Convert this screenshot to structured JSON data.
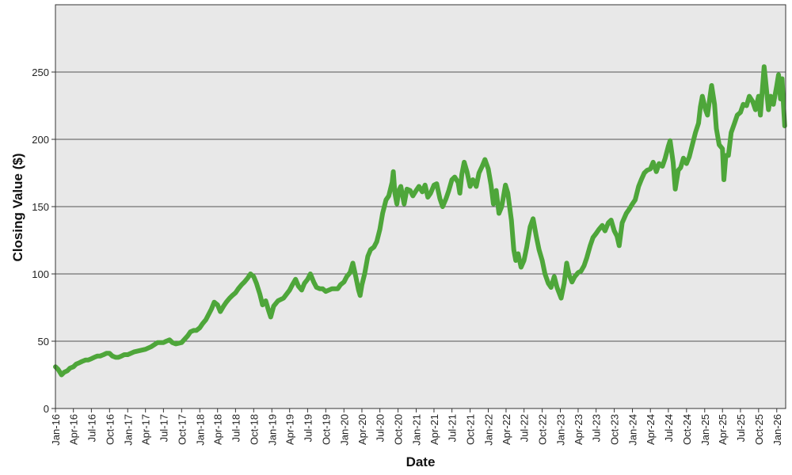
{
  "chart_data": {
    "type": "line",
    "title": "",
    "xlabel": "Date",
    "ylabel": "Closing Value ($)",
    "ylim": [
      0,
      300
    ],
    "yticks": [
      0,
      50,
      100,
      150,
      200,
      250
    ],
    "xlim": [
      "2016-01-01",
      "2026-02-15"
    ],
    "x_ticks": [
      {
        "date": "2016-01-01",
        "label": "Jan-16"
      },
      {
        "date": "2016-04-01",
        "label": "Apr-16"
      },
      {
        "date": "2016-07-01",
        "label": "Jul-16"
      },
      {
        "date": "2016-10-01",
        "label": "Oct-16"
      },
      {
        "date": "2017-01-01",
        "label": "Jan-17"
      },
      {
        "date": "2017-04-01",
        "label": "Apr-17"
      },
      {
        "date": "2017-07-01",
        "label": "Jul-17"
      },
      {
        "date": "2017-10-01",
        "label": "Oct-17"
      },
      {
        "date": "2018-01-01",
        "label": "Jan-18"
      },
      {
        "date": "2018-04-01",
        "label": "Apr-18"
      },
      {
        "date": "2018-07-01",
        "label": "Jul-18"
      },
      {
        "date": "2018-10-01",
        "label": "Oct-18"
      },
      {
        "date": "2019-01-01",
        "label": "Jan-19"
      },
      {
        "date": "2019-04-01",
        "label": "Apr-19"
      },
      {
        "date": "2019-07-01",
        "label": "Jul-19"
      },
      {
        "date": "2019-10-01",
        "label": "Oct-19"
      },
      {
        "date": "2020-01-01",
        "label": "Jan-20"
      },
      {
        "date": "2020-04-01",
        "label": "Apr-20"
      },
      {
        "date": "2020-07-01",
        "label": "Jul-20"
      },
      {
        "date": "2020-10-01",
        "label": "Oct-20"
      },
      {
        "date": "2021-01-01",
        "label": "Jan-21"
      },
      {
        "date": "2021-04-01",
        "label": "Apr-21"
      },
      {
        "date": "2021-07-01",
        "label": "Jul-21"
      },
      {
        "date": "2021-10-01",
        "label": "Oct-21"
      },
      {
        "date": "2022-01-01",
        "label": "Jan-22"
      },
      {
        "date": "2022-04-01",
        "label": "Apr-22"
      },
      {
        "date": "2022-07-01",
        "label": "Jul-22"
      },
      {
        "date": "2022-10-01",
        "label": "Oct-22"
      },
      {
        "date": "2023-01-01",
        "label": "Jan-23"
      },
      {
        "date": "2023-04-01",
        "label": "Apr-23"
      },
      {
        "date": "2023-07-01",
        "label": "Jul-23"
      },
      {
        "date": "2023-10-01",
        "label": "Oct-23"
      },
      {
        "date": "2024-01-01",
        "label": "Jan-24"
      },
      {
        "date": "2024-04-01",
        "label": "Apr-24"
      },
      {
        "date": "2024-07-01",
        "label": "Jul-24"
      },
      {
        "date": "2024-10-01",
        "label": "Oct-24"
      },
      {
        "date": "2025-01-01",
        "label": "Jan-25"
      },
      {
        "date": "2025-04-01",
        "label": "Apr-25"
      },
      {
        "date": "2025-07-01",
        "label": "Jul-25"
      },
      {
        "date": "2025-10-01",
        "label": "Oct-25"
      },
      {
        "date": "2026-01-01",
        "label": "Jan-26"
      }
    ],
    "grid": "horizontal",
    "legend": "none",
    "colors": {
      "line": "#4ea63a",
      "plot_background": "#e8e8e8",
      "gridline": "#555555",
      "axis": "#333333"
    },
    "series": [
      {
        "points": [
          [
            "2016-01-01",
            31
          ],
          [
            "2016-01-15",
            29
          ],
          [
            "2016-02-01",
            25
          ],
          [
            "2016-02-15",
            27
          ],
          [
            "2016-03-01",
            28
          ],
          [
            "2016-03-15",
            30
          ],
          [
            "2016-04-01",
            31
          ],
          [
            "2016-04-15",
            33
          ],
          [
            "2016-05-01",
            34
          ],
          [
            "2016-05-15",
            35
          ],
          [
            "2016-06-01",
            36
          ],
          [
            "2016-06-15",
            36
          ],
          [
            "2016-07-01",
            37
          ],
          [
            "2016-07-15",
            38
          ],
          [
            "2016-08-01",
            39
          ],
          [
            "2016-08-15",
            39
          ],
          [
            "2016-09-01",
            40
          ],
          [
            "2016-09-15",
            41
          ],
          [
            "2016-10-01",
            41
          ],
          [
            "2016-10-15",
            39
          ],
          [
            "2016-11-01",
            38
          ],
          [
            "2016-11-15",
            38
          ],
          [
            "2016-12-01",
            39
          ],
          [
            "2016-12-15",
            40
          ],
          [
            "2017-01-01",
            40
          ],
          [
            "2017-02-01",
            42
          ],
          [
            "2017-03-01",
            43
          ],
          [
            "2017-04-01",
            44
          ],
          [
            "2017-05-01",
            46
          ],
          [
            "2017-06-01",
            49
          ],
          [
            "2017-07-01",
            49
          ],
          [
            "2017-07-15",
            50
          ],
          [
            "2017-08-01",
            51
          ],
          [
            "2017-08-15",
            49
          ],
          [
            "2017-09-01",
            48
          ],
          [
            "2017-10-01",
            49
          ],
          [
            "2017-11-01",
            54
          ],
          [
            "2017-11-15",
            57
          ],
          [
            "2017-12-01",
            58
          ],
          [
            "2017-12-15",
            58
          ],
          [
            "2018-01-01",
            60
          ],
          [
            "2018-01-15",
            63
          ],
          [
            "2018-02-01",
            66
          ],
          [
            "2018-02-15",
            70
          ],
          [
            "2018-03-01",
            74
          ],
          [
            "2018-03-15",
            79
          ],
          [
            "2018-04-01",
            77
          ],
          [
            "2018-04-15",
            72
          ],
          [
            "2018-05-01",
            76
          ],
          [
            "2018-05-15",
            79
          ],
          [
            "2018-06-01",
            82
          ],
          [
            "2018-06-15",
            84
          ],
          [
            "2018-07-01",
            86
          ],
          [
            "2018-07-15",
            89
          ],
          [
            "2018-08-01",
            92
          ],
          [
            "2018-08-15",
            94
          ],
          [
            "2018-09-01",
            97
          ],
          [
            "2018-09-15",
            100
          ],
          [
            "2018-10-01",
            98
          ],
          [
            "2018-10-15",
            93
          ],
          [
            "2018-11-01",
            85
          ],
          [
            "2018-11-15",
            77
          ],
          [
            "2018-12-01",
            80
          ],
          [
            "2018-12-15",
            73
          ],
          [
            "2018-12-26",
            68
          ],
          [
            "2019-01-10",
            76
          ],
          [
            "2019-02-01",
            80
          ],
          [
            "2019-03-01",
            82
          ],
          [
            "2019-04-01",
            88
          ],
          [
            "2019-04-15",
            92
          ],
          [
            "2019-05-01",
            96
          ],
          [
            "2019-05-15",
            91
          ],
          [
            "2019-06-01",
            88
          ],
          [
            "2019-06-15",
            93
          ],
          [
            "2019-07-01",
            96
          ],
          [
            "2019-07-15",
            100
          ],
          [
            "2019-08-01",
            94
          ],
          [
            "2019-08-15",
            90
          ],
          [
            "2019-09-01",
            89
          ],
          [
            "2019-09-15",
            89
          ],
          [
            "2019-10-01",
            87
          ],
          [
            "2019-11-01",
            89
          ],
          [
            "2019-12-01",
            89
          ],
          [
            "2019-12-15",
            92
          ],
          [
            "2020-01-01",
            94
          ],
          [
            "2020-01-15",
            98
          ],
          [
            "2020-02-01",
            101
          ],
          [
            "2020-02-15",
            108
          ],
          [
            "2020-03-01",
            98
          ],
          [
            "2020-03-15",
            88
          ],
          [
            "2020-03-23",
            84
          ],
          [
            "2020-04-01",
            92
          ],
          [
            "2020-04-15",
            100
          ],
          [
            "2020-05-01",
            113
          ],
          [
            "2020-05-15",
            118
          ],
          [
            "2020-06-01",
            120
          ],
          [
            "2020-06-15",
            124
          ],
          [
            "2020-07-01",
            133
          ],
          [
            "2020-07-15",
            145
          ],
          [
            "2020-08-01",
            155
          ],
          [
            "2020-08-15",
            158
          ],
          [
            "2020-09-01",
            168
          ],
          [
            "2020-09-07",
            176
          ],
          [
            "2020-09-15",
            160
          ],
          [
            "2020-09-25",
            152
          ],
          [
            "2020-10-05",
            162
          ],
          [
            "2020-10-15",
            165
          ],
          [
            "2020-11-01",
            152
          ],
          [
            "2020-11-15",
            163
          ],
          [
            "2020-12-01",
            162
          ],
          [
            "2020-12-15",
            158
          ],
          [
            "2021-01-01",
            162
          ],
          [
            "2021-01-15",
            165
          ],
          [
            "2021-02-01",
            161
          ],
          [
            "2021-02-15",
            166
          ],
          [
            "2021-03-01",
            157
          ],
          [
            "2021-03-15",
            160
          ],
          [
            "2021-04-01",
            166
          ],
          [
            "2021-04-15",
            167
          ],
          [
            "2021-05-01",
            156
          ],
          [
            "2021-05-15",
            150
          ],
          [
            "2021-06-01",
            156
          ],
          [
            "2021-06-15",
            162
          ],
          [
            "2021-07-01",
            170
          ],
          [
            "2021-07-15",
            172
          ],
          [
            "2021-08-01",
            168
          ],
          [
            "2021-08-10",
            160
          ],
          [
            "2021-08-20",
            174
          ],
          [
            "2021-09-01",
            183
          ],
          [
            "2021-09-15",
            176
          ],
          [
            "2021-10-01",
            165
          ],
          [
            "2021-10-15",
            170
          ],
          [
            "2021-11-01",
            165
          ],
          [
            "2021-11-15",
            175
          ],
          [
            "2021-12-01",
            180
          ],
          [
            "2021-12-15",
            185
          ],
          [
            "2022-01-01",
            178
          ],
          [
            "2022-01-15",
            166
          ],
          [
            "2022-01-27",
            152
          ],
          [
            "2022-02-10",
            162
          ],
          [
            "2022-02-24",
            145
          ],
          [
            "2022-03-10",
            150
          ],
          [
            "2022-03-29",
            166
          ],
          [
            "2022-04-10",
            160
          ],
          [
            "2022-04-28",
            140
          ],
          [
            "2022-05-10",
            118
          ],
          [
            "2022-05-20",
            110
          ],
          [
            "2022-06-01",
            115
          ],
          [
            "2022-06-16",
            105
          ],
          [
            "2022-07-01",
            110
          ],
          [
            "2022-07-15",
            120
          ],
          [
            "2022-08-01",
            135
          ],
          [
            "2022-08-16",
            141
          ],
          [
            "2022-09-01",
            128
          ],
          [
            "2022-09-15",
            118
          ],
          [
            "2022-10-01",
            110
          ],
          [
            "2022-10-15",
            100
          ],
          [
            "2022-11-01",
            93
          ],
          [
            "2022-11-15",
            90
          ],
          [
            "2022-12-01",
            98
          ],
          [
            "2022-12-15",
            90
          ],
          [
            "2023-01-05",
            82
          ],
          [
            "2023-01-20",
            93
          ],
          [
            "2023-02-02",
            108
          ],
          [
            "2023-02-15",
            99
          ],
          [
            "2023-03-01",
            94
          ],
          [
            "2023-03-15",
            98
          ],
          [
            "2023-04-01",
            101
          ],
          [
            "2023-04-15",
            102
          ],
          [
            "2023-05-01",
            106
          ],
          [
            "2023-05-15",
            112
          ],
          [
            "2023-06-01",
            121
          ],
          [
            "2023-06-15",
            127
          ],
          [
            "2023-07-01",
            130
          ],
          [
            "2023-07-15",
            133
          ],
          [
            "2023-08-01",
            136
          ],
          [
            "2023-08-15",
            132
          ],
          [
            "2023-09-01",
            138
          ],
          [
            "2023-09-15",
            140
          ],
          [
            "2023-10-01",
            132
          ],
          [
            "2023-10-15",
            128
          ],
          [
            "2023-10-26",
            121
          ],
          [
            "2023-11-10",
            138
          ],
          [
            "2023-12-01",
            145
          ],
          [
            "2023-12-15",
            148
          ],
          [
            "2024-01-01",
            152
          ],
          [
            "2024-01-15",
            155
          ],
          [
            "2024-02-01",
            165
          ],
          [
            "2024-02-15",
            170
          ],
          [
            "2024-03-01",
            175
          ],
          [
            "2024-03-15",
            177
          ],
          [
            "2024-04-01",
            178
          ],
          [
            "2024-04-15",
            183
          ],
          [
            "2024-05-01",
            176
          ],
          [
            "2024-05-15",
            182
          ],
          [
            "2024-06-01",
            180
          ],
          [
            "2024-06-15",
            186
          ],
          [
            "2024-07-01",
            195
          ],
          [
            "2024-07-10",
            199
          ],
          [
            "2024-07-25",
            183
          ],
          [
            "2024-08-05",
            163
          ],
          [
            "2024-08-20",
            177
          ],
          [
            "2024-09-01",
            179
          ],
          [
            "2024-09-15",
            186
          ],
          [
            "2024-10-01",
            182
          ],
          [
            "2024-10-15",
            187
          ],
          [
            "2024-11-01",
            197
          ],
          [
            "2024-11-15",
            205
          ],
          [
            "2024-12-01",
            212
          ],
          [
            "2024-12-10",
            224
          ],
          [
            "2024-12-20",
            232
          ],
          [
            "2025-01-05",
            222
          ],
          [
            "2025-01-15",
            218
          ],
          [
            "2025-02-01",
            236
          ],
          [
            "2025-02-05",
            240
          ],
          [
            "2025-02-20",
            226
          ],
          [
            "2025-03-01",
            208
          ],
          [
            "2025-03-15",
            196
          ],
          [
            "2025-04-01",
            193
          ],
          [
            "2025-04-08",
            170
          ],
          [
            "2025-04-18",
            188
          ],
          [
            "2025-05-01",
            188
          ],
          [
            "2025-05-15",
            205
          ],
          [
            "2025-06-01",
            212
          ],
          [
            "2025-06-15",
            218
          ],
          [
            "2025-07-01",
            220
          ],
          [
            "2025-07-15",
            226
          ],
          [
            "2025-08-01",
            225
          ],
          [
            "2025-08-15",
            232
          ],
          [
            "2025-09-01",
            228
          ],
          [
            "2025-09-15",
            222
          ],
          [
            "2025-10-01",
            232
          ],
          [
            "2025-10-10",
            218
          ],
          [
            "2025-10-20",
            237
          ],
          [
            "2025-10-29",
            254
          ],
          [
            "2025-11-05",
            244
          ],
          [
            "2025-11-20",
            222
          ],
          [
            "2025-12-01",
            232
          ],
          [
            "2025-12-15",
            226
          ],
          [
            "2026-01-01",
            240
          ],
          [
            "2026-01-10",
            248
          ],
          [
            "2026-01-20",
            230
          ],
          [
            "2026-01-28",
            245
          ],
          [
            "2026-02-04",
            225
          ],
          [
            "2026-02-10",
            210
          ]
        ]
      }
    ]
  }
}
